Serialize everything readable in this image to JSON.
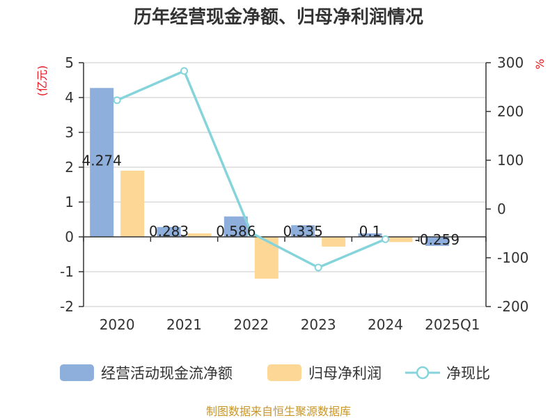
{
  "chart_data": {
    "type": "bar",
    "title": "历年经营现金净额、归母净利润情况",
    "categories": [
      "2020",
      "2021",
      "2022",
      "2023",
      "2024",
      "2025Q1"
    ],
    "series": [
      {
        "name": "经营活动现金流净额",
        "type": "bar",
        "axis": "left",
        "color": "#8eaedb",
        "values": [
          4.274,
          0.283,
          0.586,
          0.335,
          0.1,
          -0.259
        ],
        "labels": [
          "4.274",
          "0.283",
          "0.586",
          "0.335",
          "0.1",
          "-0.259"
        ]
      },
      {
        "name": "归母净利润",
        "type": "bar",
        "axis": "left",
        "color": "#fcd795",
        "values": [
          1.9,
          0.1,
          -1.2,
          -0.28,
          -0.15,
          null
        ]
      },
      {
        "name": "净现比",
        "type": "line",
        "axis": "right",
        "color": "#86d4db",
        "values": [
          223,
          283,
          -49,
          -120,
          -62,
          null
        ]
      }
    ],
    "left_axis": {
      "unit": "(亿元)",
      "ylim": [
        -2,
        5
      ],
      "ticks": [
        "-2",
        "-1",
        "0",
        "1",
        "2",
        "3",
        "4",
        "5"
      ]
    },
    "right_axis": {
      "unit": "%",
      "ylim": [
        -200,
        300
      ],
      "ticks": [
        "-200",
        "-100",
        "0",
        "100",
        "200",
        "300"
      ]
    },
    "grid": true,
    "legend_position": "bottom"
  },
  "source": "制图数据来自恒生聚源数据库"
}
